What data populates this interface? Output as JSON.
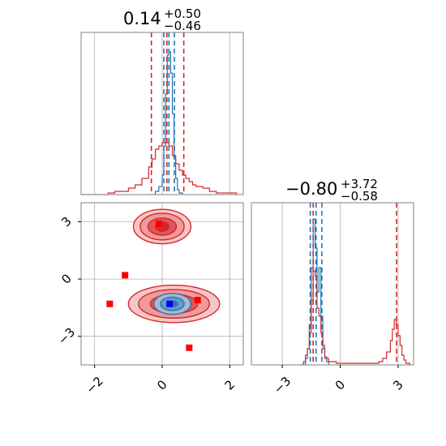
{
  "colors": {
    "blue": "#1f77b4",
    "red": "#d62728",
    "marker": "#ff0000",
    "marker_blue": "#0000ff",
    "grid": "#b0b0b0",
    "frame": "#808080"
  },
  "chart_data": [
    {
      "type": "histogram",
      "panel": "top-left",
      "parameter_index": 0,
      "title": {
        "median": "0.14",
        "upper": "+0.50",
        "lower": "−0.46"
      },
      "xlim": [
        -2.4,
        2.4
      ],
      "grid": true,
      "series": [
        {
          "color": "blue",
          "bins": [
            [
              -0.4,
              0
            ],
            [
              -0.3,
              0
            ],
            [
              -0.2,
              0.02
            ],
            [
              -0.1,
              0.05
            ],
            [
              0.0,
              0.12
            ],
            [
              0.05,
              0.3
            ],
            [
              0.1,
              0.62
            ],
            [
              0.15,
              0.86
            ],
            [
              0.2,
              0.88
            ],
            [
              0.25,
              0.75
            ],
            [
              0.3,
              0.5
            ],
            [
              0.35,
              0.22
            ],
            [
              0.4,
              0.1
            ],
            [
              0.45,
              0.03
            ],
            [
              0.5,
              0.01
            ],
            [
              0.6,
              0
            ]
          ],
          "quantile_lines": [
            0.05,
            0.2,
            0.36
          ]
        },
        {
          "color": "red",
          "bins": [
            [
              -2.4,
              0
            ],
            [
              -1.6,
              0.01
            ],
            [
              -1.4,
              0.02
            ],
            [
              -1.2,
              0.02
            ],
            [
              -1.0,
              0.04
            ],
            [
              -0.8,
              0.06
            ],
            [
              -0.6,
              0.1
            ],
            [
              -0.4,
              0.17
            ],
            [
              -0.3,
              0.22
            ],
            [
              -0.2,
              0.28
            ],
            [
              -0.1,
              0.3
            ],
            [
              0.0,
              0.32
            ],
            [
              0.1,
              0.32
            ],
            [
              0.2,
              0.3
            ],
            [
              0.3,
              0.24
            ],
            [
              0.4,
              0.19
            ],
            [
              0.5,
              0.15
            ],
            [
              0.6,
              0.12
            ],
            [
              0.7,
              0.1
            ],
            [
              0.8,
              0.08
            ],
            [
              0.9,
              0.06
            ],
            [
              1.0,
              0.05
            ],
            [
              1.2,
              0.04
            ],
            [
              1.4,
              0.02
            ],
            [
              1.6,
              0.01
            ],
            [
              1.8,
              0.01
            ],
            [
              2.2,
              0
            ]
          ],
          "quantile_lines": [
            -0.32,
            0.14,
            0.64
          ]
        }
      ]
    },
    {
      "type": "contour_scatter",
      "panel": "bottom-left",
      "xlim": [
        -2.4,
        2.4
      ],
      "ylim": [
        -4.5,
        4.0
      ],
      "xticks": [
        "−2",
        "0",
        "2"
      ],
      "xtick_values": [
        -2,
        0,
        2
      ],
      "yticks": [
        "3",
        "0",
        "−3"
      ],
      "ytick_values": [
        3,
        0,
        -3
      ],
      "grid": true,
      "clusters": [
        {
          "color": "red",
          "center": [
            0.0,
            2.75
          ],
          "radii": [
            [
              0.85,
              0.9
            ],
            [
              0.65,
              0.7
            ],
            [
              0.42,
              0.45
            ],
            [
              0.2,
              0.25
            ]
          ]
        },
        {
          "color": "red",
          "center": [
            0.35,
            -1.3
          ],
          "radii": [
            [
              1.35,
              0.98
            ],
            [
              1.05,
              0.75
            ],
            [
              0.7,
              0.5
            ],
            [
              0.35,
              0.25
            ]
          ]
        },
        {
          "color": "blue",
          "center": [
            0.3,
            -1.3
          ],
          "radii": [
            [
              0.55,
              0.55
            ],
            [
              0.35,
              0.35
            ],
            [
              0.15,
              0.15
            ]
          ]
        }
      ],
      "markers": [
        {
          "color": "marker",
          "x": -0.1,
          "y": 2.9
        },
        {
          "color": "marker",
          "x": -1.1,
          "y": 0.2
        },
        {
          "color": "marker",
          "x": -1.55,
          "y": -1.3
        },
        {
          "color": "marker",
          "x": 1.05,
          "y": -1.1
        },
        {
          "color": "marker",
          "x": 0.8,
          "y": -3.6
        },
        {
          "color": "marker_blue",
          "x": 0.22,
          "y": -1.3
        }
      ]
    },
    {
      "type": "histogram",
      "panel": "bottom-right",
      "parameter_index": 1,
      "title": {
        "median": "−0.80",
        "upper": "+3.72",
        "lower": "−0.58"
      },
      "xlim": [
        -4.6,
        3.8
      ],
      "xticks": [
        "−3",
        "0",
        "3"
      ],
      "xtick_values": [
        -3,
        0,
        3
      ],
      "grid": true,
      "series": [
        {
          "color": "blue",
          "bins": [
            [
              -2.0,
              0
            ],
            [
              -1.8,
              0.04
            ],
            [
              -1.7,
              0.1
            ],
            [
              -1.6,
              0.25
            ],
            [
              -1.5,
              0.6
            ],
            [
              -1.4,
              0.9
            ],
            [
              -1.3,
              0.72
            ],
            [
              -1.2,
              0.45
            ],
            [
              -1.1,
              0.6
            ],
            [
              -1.0,
              0.3
            ],
            [
              -0.9,
              0.12
            ],
            [
              -0.8,
              0.05
            ],
            [
              -0.7,
              0.02
            ],
            [
              -0.6,
              0
            ]
          ],
          "quantile_lines": [
            -1.55,
            -1.25,
            -0.95
          ]
        },
        {
          "color": "red",
          "bins": [
            [
              -2.1,
              0
            ],
            [
              -1.9,
              0.02
            ],
            [
              -1.8,
              0.06
            ],
            [
              -1.7,
              0.1
            ],
            [
              -1.6,
              0.2
            ],
            [
              -1.5,
              0.4
            ],
            [
              -1.4,
              0.58
            ],
            [
              -1.3,
              0.55
            ],
            [
              -1.2,
              0.35
            ],
            [
              -1.1,
              0.3
            ],
            [
              -1.0,
              0.2
            ],
            [
              -0.9,
              0.1
            ],
            [
              -0.8,
              0.04
            ],
            [
              -0.6,
              0.02
            ],
            [
              -0.2,
              0.01
            ],
            [
              0.4,
              0.01
            ],
            [
              1.0,
              0.01
            ],
            [
              1.6,
              0.01
            ],
            [
              2.0,
              0.02
            ],
            [
              2.2,
              0.04
            ],
            [
              2.4,
              0.08
            ],
            [
              2.6,
              0.15
            ],
            [
              2.7,
              0.22
            ],
            [
              2.8,
              0.28
            ],
            [
              2.9,
              0.25
            ],
            [
              3.0,
              0.18
            ],
            [
              3.1,
              0.12
            ],
            [
              3.2,
              0.06
            ],
            [
              3.3,
              0.03
            ],
            [
              3.4,
              0.01
            ],
            [
              3.6,
              0
            ]
          ],
          "quantile_lines": [
            -1.4,
            2.92
          ]
        }
      ]
    }
  ]
}
